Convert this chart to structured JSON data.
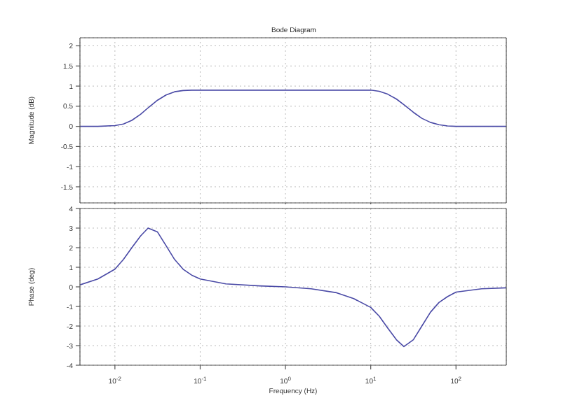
{
  "chart_data": [
    {
      "type": "line",
      "title": "Bode Diagram",
      "ylabel": "Magnitude (dB)",
      "x": [
        0.00389,
        0.00631,
        0.01,
        0.0126,
        0.0158,
        0.02,
        0.0251,
        0.0316,
        0.0398,
        0.0501,
        0.0631,
        0.0794,
        1,
        10,
        12.6,
        15.8,
        20,
        25.1,
        31.6,
        39.8,
        50.1,
        63.1,
        79.4,
        100,
        389
      ],
      "series": [
        {
          "color": "#4a4aa6",
          "values": [
            0,
            0,
            0.02,
            0.06,
            0.15,
            0.3,
            0.48,
            0.65,
            0.78,
            0.86,
            0.89,
            0.9,
            0.9,
            0.9,
            0.87,
            0.8,
            0.68,
            0.52,
            0.35,
            0.2,
            0.1,
            0.04,
            0.01,
            0,
            0
          ]
        }
      ],
      "log": "x",
      "xlim": [
        0.00389,
        389
      ],
      "xticks": [
        {
          "value": 0.01,
          "label": null
        },
        {
          "value": 0.1,
          "label": null
        },
        {
          "value": 1,
          "label": null
        },
        {
          "value": 10,
          "label": null
        },
        {
          "value": 100,
          "label": null
        }
      ],
      "ylim": [
        -1.9,
        2.2
      ],
      "yticks": [
        -1.5,
        -1,
        -0.5,
        0,
        0.5,
        1,
        1.5,
        2
      ],
      "grid": true,
      "tick_labels": "y",
      "legend": false,
      "marker": "none",
      "line_style": "solid"
    },
    {
      "type": "line",
      "ylabel": "Phase (deg)",
      "xlabel": "Frequency (Hz)",
      "x": [
        0.00389,
        0.00631,
        0.01,
        0.0126,
        0.0158,
        0.02,
        0.0245,
        0.0316,
        0.0398,
        0.0501,
        0.0631,
        0.0794,
        0.1,
        0.2,
        0.5,
        1,
        2,
        3.98,
        6.31,
        10,
        12.6,
        15.8,
        20,
        24.5,
        31.6,
        39.8,
        50.1,
        63.1,
        79.4,
        100,
        200,
        389
      ],
      "series": [
        {
          "color": "#4a4aa6",
          "values": [
            0.1,
            0.4,
            0.9,
            1.4,
            2.0,
            2.6,
            3.0,
            2.8,
            2.1,
            1.4,
            0.9,
            0.6,
            0.4,
            0.15,
            0.05,
            0,
            -0.1,
            -0.3,
            -0.6,
            -1.05,
            -1.5,
            -2.1,
            -2.7,
            -3.05,
            -2.7,
            -2.0,
            -1.3,
            -0.8,
            -0.5,
            -0.27,
            -0.1,
            -0.05
          ]
        }
      ],
      "log": "x",
      "xlim": [
        0.00389,
        389
      ],
      "xticks": [
        {
          "value": 0.01,
          "label": "10$^{-2}$"
        },
        {
          "value": 0.1,
          "label": "10$^{-1}$"
        },
        {
          "value": 1,
          "label": "10$^{0}$"
        },
        {
          "value": 10,
          "label": "10$^{1}$"
        },
        {
          "value": 100,
          "label": "10$^{2}$"
        }
      ],
      "ylim": [
        -4,
        4
      ],
      "yticks": [
        -4,
        -3,
        -2,
        -1,
        0,
        1,
        2,
        3,
        4
      ],
      "grid": true,
      "legend": false,
      "marker": "none",
      "line_style": "solid"
    }
  ]
}
